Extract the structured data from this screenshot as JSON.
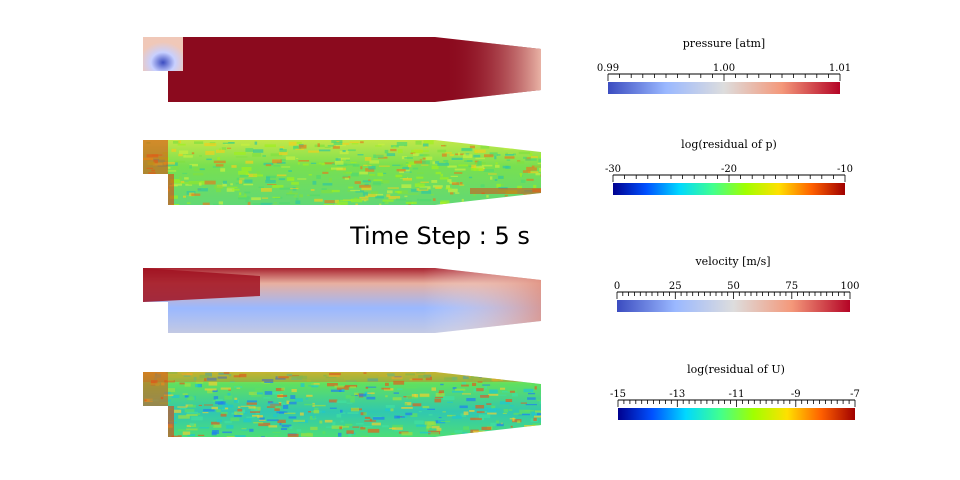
{
  "time_step_label": "Time Step : 5 s",
  "colorbars": [
    {
      "title": "pressure [atm]",
      "tick_labels": [
        "0.99",
        "1.00",
        "1.01"
      ],
      "colormap": [
        "#3b4cc0",
        "#9ab8ff",
        "#dddddd",
        "#f4987a",
        "#b40426"
      ]
    },
    {
      "title": "log(residual of p)",
      "tick_labels": [
        "-30",
        "-20",
        "-10"
      ],
      "colormap": [
        "#00008f",
        "#0050ff",
        "#00d8ff",
        "#40ff90",
        "#a0ff00",
        "#ffe000",
        "#ff6000",
        "#a00000"
      ]
    },
    {
      "title": "velocity [m/s]",
      "tick_labels": [
        "0",
        "25",
        "50",
        "75",
        "100"
      ],
      "colormap": [
        "#3b4cc0",
        "#9ab8ff",
        "#dddddd",
        "#f4987a",
        "#b40426"
      ]
    },
    {
      "title": "log(residual of U)",
      "tick_labels": [
        "-15",
        "-13",
        "-11",
        "-9",
        "-7"
      ],
      "colormap": [
        "#00008f",
        "#0050ff",
        "#00d8ff",
        "#40ff90",
        "#a0ff00",
        "#ffe000",
        "#ff6000",
        "#a00000"
      ]
    }
  ],
  "fields": [
    {
      "name": "pressure",
      "base_color": "#8b0a1e",
      "inlet_color": "#9ab8ff",
      "outlet_color": "#e8a090"
    },
    {
      "name": "residual-p",
      "base_color": "#8fe040",
      "inlet_color": "#e04010",
      "outlet_color": "#c0ff60"
    },
    {
      "name": "velocity",
      "base_color": "#d0d6e8",
      "inlet_color": "#a01020",
      "outlet_color": "#e09080"
    },
    {
      "name": "residual-U",
      "base_color": "#40e080",
      "inlet_color": "#e05010",
      "outlet_color": "#40d8a0"
    }
  ]
}
